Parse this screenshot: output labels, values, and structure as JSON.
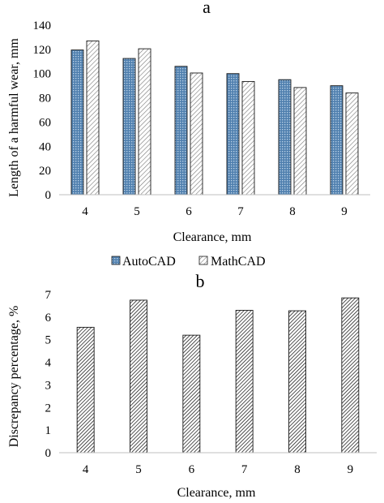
{
  "chart_data": [
    {
      "panel_label": "a",
      "type": "bar",
      "categories": [
        "4",
        "5",
        "6",
        "7",
        "8",
        "9"
      ],
      "series": [
        {
          "name": "AutoCAD",
          "values": [
            119.5,
            112.5,
            106,
            100,
            95,
            90
          ],
          "color": "#4f7fae",
          "pattern": "dotted"
        },
        {
          "name": "MathCAD",
          "values": [
            127,
            120.5,
            100.5,
            93.5,
            88.5,
            84
          ],
          "color": "#ffffff",
          "pattern": "light-hatch"
        }
      ],
      "xlabel": "Clearance, mm",
      "ylabel": "Length of a harmful wear, mm",
      "ylim": [
        0,
        140
      ],
      "yticks": [
        "0",
        "20",
        "40",
        "60",
        "80",
        "100",
        "120",
        "140"
      ],
      "grid": false,
      "legend_position": "bottom"
    },
    {
      "panel_label": "b",
      "type": "bar",
      "categories": [
        "4",
        "5",
        "6",
        "7",
        "8",
        "9"
      ],
      "series": [
        {
          "values": [
            5.55,
            6.75,
            5.2,
            6.3,
            6.28,
            6.85
          ],
          "color": "#ffffff",
          "pattern": "dense-hatch"
        }
      ],
      "xlabel": "Clearance, mm",
      "ylabel": "Discrepancy percentage, %",
      "ylim": [
        0,
        7
      ],
      "yticks": [
        "0",
        "1",
        "2",
        "3",
        "4",
        "5",
        "6",
        "7"
      ],
      "grid": false
    }
  ]
}
